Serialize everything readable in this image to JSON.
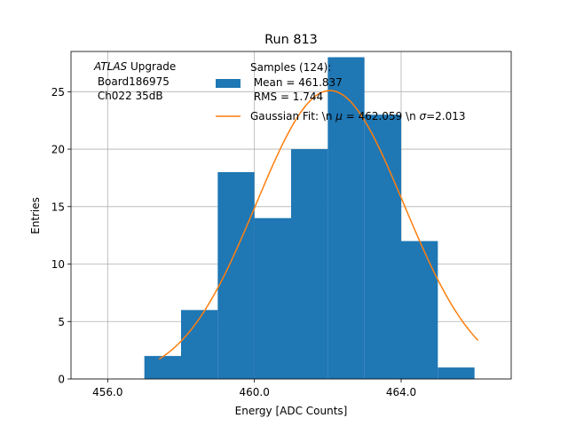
{
  "chart_data": {
    "type": "bar",
    "title": "Run 813",
    "xlabel": "Energy [ADC Counts]",
    "ylabel": "Entries",
    "xlim": [
      455.0,
      467.0
    ],
    "ylim": [
      0,
      28.5
    ],
    "grid": true,
    "x_ticks": [
      456.0,
      460.0,
      464.0
    ],
    "x_tick_labels": [
      "456.0",
      "460.0",
      "464.0"
    ],
    "y_ticks": [
      0,
      5,
      10,
      15,
      20,
      25
    ],
    "y_tick_labels": [
      "0",
      "5",
      "10",
      "15",
      "20",
      "25"
    ],
    "histogram": {
      "bin_edges": [
        456,
        457,
        458,
        459,
        460,
        461,
        462,
        463,
        464,
        465,
        466
      ],
      "counts": [
        0,
        2,
        6,
        18,
        14,
        20,
        28,
        23,
        12,
        1
      ],
      "color": "#1f77b4"
    },
    "fit": {
      "mu": 462.059,
      "sigma": 2.013,
      "amplitude": 25.1,
      "x_range": [
        457.4,
        466.1
      ],
      "color": "#ff7f0e"
    },
    "annotation": {
      "italic": "ATLAS",
      "rest": " Upgrade",
      "line2": " Board186975",
      "line3": " Ch022 35dB"
    },
    "legend": {
      "position": "top-right",
      "entries": [
        {
          "name": "samples",
          "line1": "Samples (124):",
          "line2": " Mean = 461.837",
          "line3": " RMS = 1.744"
        },
        {
          "name": "fit",
          "prefix": "Gaussian Fit: \\n ",
          "mu_symbol": "μ",
          "mu_text": " = 462.059 \\n ",
          "sigma_symbol": "σ",
          "sigma_text": "=2.013"
        }
      ]
    }
  }
}
